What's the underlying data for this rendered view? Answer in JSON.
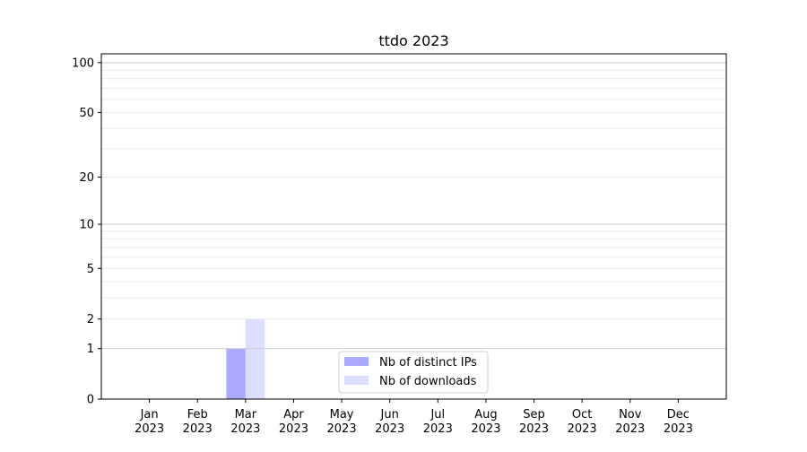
{
  "chart_data": {
    "type": "bar",
    "title": "ttdo 2023",
    "xlabel": "",
    "ylabel": "",
    "categories": [
      "Jan\n2023",
      "Feb\n2023",
      "Mar\n2023",
      "Apr\n2023",
      "May\n2023",
      "Jun\n2023",
      "Jul\n2023",
      "Aug\n2023",
      "Sep\n2023",
      "Oct\n2023",
      "Nov\n2023",
      "Dec\n2023"
    ],
    "series": [
      {
        "name": "Nb of distinct IPs",
        "color": "#aaaaff",
        "values": [
          0,
          0,
          1,
          0,
          0,
          0,
          0,
          0,
          0,
          0,
          0,
          0
        ]
      },
      {
        "name": "Nb of downloads",
        "color": "#ddddff",
        "values": [
          0,
          0,
          2,
          0,
          0,
          0,
          0,
          0,
          0,
          0,
          0,
          0
        ]
      }
    ],
    "yscale": "log(y+1)",
    "ylim": [
      0,
      113
    ],
    "yticks": [
      0,
      1,
      2,
      5,
      10,
      20,
      50,
      100
    ],
    "grid": true,
    "legend": "lower-center"
  }
}
